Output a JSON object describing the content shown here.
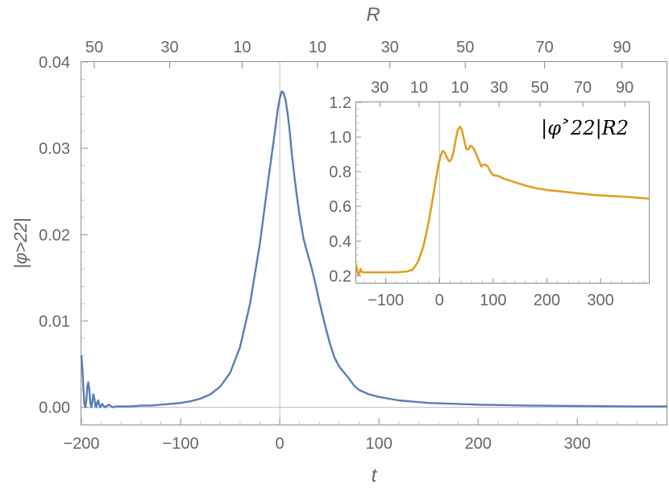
{
  "chart_data": [
    {
      "type": "line",
      "title": "",
      "xlabel": "t",
      "ylabel": "|φ˃22|",
      "top_axis_label": "R",
      "xlim": [
        -200,
        390
      ],
      "ylim": [
        -0.002,
        0.04
      ],
      "x_ticks": [
        -200,
        -100,
        0,
        100,
        200,
        300
      ],
      "x_tick_labels": [
        "−200",
        "−100",
        "0",
        "100",
        "200",
        "300"
      ],
      "y_ticks": [
        0.0,
        0.01,
        0.02,
        0.03,
        0.04
      ],
      "y_tick_labels": [
        "0.00",
        "0.01",
        "0.02",
        "0.03",
        "0.04"
      ],
      "top_ticks": [
        {
          "t": -187,
          "label": "50"
        },
        {
          "t": -111,
          "label": "30"
        },
        {
          "t": -38,
          "label": "10"
        },
        {
          "t": 38,
          "label": "10"
        },
        {
          "t": 111,
          "label": "30"
        },
        {
          "t": 187,
          "label": "50"
        },
        {
          "t": 267,
          "label": "70"
        },
        {
          "t": 345,
          "label": "90"
        }
      ],
      "grid": false,
      "reference_lines": {
        "x": 0,
        "y": 0
      },
      "series": [
        {
          "color": "#5b7db5",
          "points": [
            [
              -200,
              0.0059
            ],
            [
              -199,
              0.0045
            ],
            [
              -198,
              0.0022
            ],
            [
              -197,
              0.0004
            ],
            [
              -196,
              0.0
            ],
            [
              -195,
              0.0008
            ],
            [
              -194,
              0.0024
            ],
            [
              -193,
              0.0029
            ],
            [
              -192,
              0.002
            ],
            [
              -191,
              0.0005
            ],
            [
              -190,
              0.0
            ],
            [
              -189,
              0.0007
            ],
            [
              -188,
              0.0015
            ],
            [
              -187,
              0.0011
            ],
            [
              -186,
              0.0002
            ],
            [
              -185,
              0.0
            ],
            [
              -184,
              0.0006
            ],
            [
              -183,
              0.0008
            ],
            [
              -182,
              0.0003
            ],
            [
              -181,
              0.0
            ],
            [
              -180,
              0.0002
            ],
            [
              -179,
              0.0004
            ],
            [
              -178,
              0.0002
            ],
            [
              -176,
              0.0
            ],
            [
              -174,
              0.0002
            ],
            [
              -172,
              0.0003
            ],
            [
              -170,
              0.0001
            ],
            [
              -168,
              0.0
            ],
            [
              -165,
              0.0001
            ],
            [
              -160,
              0.0001
            ],
            [
              -150,
              0.0001
            ],
            [
              -140,
              0.0002
            ],
            [
              -130,
              0.0002
            ],
            [
              -120,
              0.0003
            ],
            [
              -110,
              0.0004
            ],
            [
              -100,
              0.0005
            ],
            [
              -90,
              0.0007
            ],
            [
              -80,
              0.001
            ],
            [
              -70,
              0.0015
            ],
            [
              -60,
              0.0024
            ],
            [
              -50,
              0.004
            ],
            [
              -40,
              0.007
            ],
            [
              -30,
              0.012
            ],
            [
              -20,
              0.019
            ],
            [
              -12,
              0.026
            ],
            [
              -6,
              0.031
            ],
            [
              -2,
              0.0345
            ],
            [
              0,
              0.0358
            ],
            [
              2,
              0.0366
            ],
            [
              4,
              0.0364
            ],
            [
              6,
              0.0355
            ],
            [
              8,
              0.034
            ],
            [
              10,
              0.032
            ],
            [
              12,
              0.0295
            ],
            [
              15,
              0.0265
            ],
            [
              18,
              0.0238
            ],
            [
              20,
              0.0222
            ],
            [
              24,
              0.0195
            ],
            [
              28,
              0.0178
            ],
            [
              32,
              0.0162
            ],
            [
              36,
              0.0143
            ],
            [
              40,
              0.0122
            ],
            [
              45,
              0.0098
            ],
            [
              50,
              0.0076
            ],
            [
              55,
              0.0058
            ],
            [
              60,
              0.0047
            ],
            [
              65,
              0.004
            ],
            [
              70,
              0.0033
            ],
            [
              75,
              0.0025
            ],
            [
              80,
              0.002
            ],
            [
              90,
              0.0015
            ],
            [
              100,
              0.0012
            ],
            [
              120,
              0.0008
            ],
            [
              150,
              0.0005
            ],
            [
              200,
              0.0003
            ],
            [
              250,
              0.0002
            ],
            [
              300,
              0.00015
            ],
            [
              350,
              0.0001
            ],
            [
              390,
              0.0001
            ]
          ]
        }
      ]
    },
    {
      "type": "line",
      "title": "",
      "series_label": "|φ˃22|R2",
      "xlim": [
        -155,
        390
      ],
      "ylim": [
        0.16,
        1.2
      ],
      "x_ticks": [
        -100,
        0,
        100,
        200,
        300
      ],
      "x_tick_labels": [
        "−100",
        "0",
        "100",
        "200",
        "300"
      ],
      "y_ticks": [
        0.2,
        0.4,
        0.6,
        0.8,
        1.0,
        1.2
      ],
      "y_tick_labels": [
        "0.2",
        "0.4",
        "0.6",
        "0.8",
        "1.0",
        "1.2"
      ],
      "top_ticks": [
        {
          "t": -111,
          "label": "30"
        },
        {
          "t": -38,
          "label": "10"
        },
        {
          "t": 38,
          "label": "10"
        },
        {
          "t": 111,
          "label": "30"
        },
        {
          "t": 187,
          "label": "50"
        },
        {
          "t": 267,
          "label": "70"
        },
        {
          "t": 345,
          "label": "90"
        }
      ],
      "grid": false,
      "reference_lines": {
        "x": 0
      },
      "series": [
        {
          "color": "#e0a024",
          "points": [
            [
              -155,
              0.26
            ],
            [
              -153,
              0.225
            ],
            [
              -151,
              0.205
            ],
            [
              -149,
              0.215
            ],
            [
              -147,
              0.24
            ],
            [
              -145,
              0.225
            ],
            [
              -142,
              0.22
            ],
            [
              -135,
              0.22
            ],
            [
              -120,
              0.22
            ],
            [
              -100,
              0.22
            ],
            [
              -80,
              0.22
            ],
            [
              -60,
              0.225
            ],
            [
              -50,
              0.235
            ],
            [
              -40,
              0.28
            ],
            [
              -30,
              0.37
            ],
            [
              -22,
              0.48
            ],
            [
              -15,
              0.6
            ],
            [
              -8,
              0.73
            ],
            [
              -2,
              0.84
            ],
            [
              2,
              0.89
            ],
            [
              6,
              0.92
            ],
            [
              10,
              0.91
            ],
            [
              14,
              0.88
            ],
            [
              18,
              0.86
            ],
            [
              22,
              0.87
            ],
            [
              26,
              0.91
            ],
            [
              30,
              0.98
            ],
            [
              34,
              1.04
            ],
            [
              38,
              1.06
            ],
            [
              42,
              1.04
            ],
            [
              46,
              0.98
            ],
            [
              50,
              0.93
            ],
            [
              54,
              0.93
            ],
            [
              58,
              0.95
            ],
            [
              62,
              0.94
            ],
            [
              66,
              0.92
            ],
            [
              70,
              0.89
            ],
            [
              74,
              0.86
            ],
            [
              78,
              0.83
            ],
            [
              82,
              0.84
            ],
            [
              86,
              0.84
            ],
            [
              90,
              0.83
            ],
            [
              95,
              0.8
            ],
            [
              100,
              0.78
            ],
            [
              110,
              0.775
            ],
            [
              120,
              0.76
            ],
            [
              140,
              0.74
            ],
            [
              160,
              0.72
            ],
            [
              180,
              0.705
            ],
            [
              200,
              0.695
            ],
            [
              230,
              0.685
            ],
            [
              260,
              0.675
            ],
            [
              290,
              0.665
            ],
            [
              320,
              0.66
            ],
            [
              350,
              0.655
            ],
            [
              390,
              0.645
            ]
          ]
        }
      ]
    }
  ]
}
